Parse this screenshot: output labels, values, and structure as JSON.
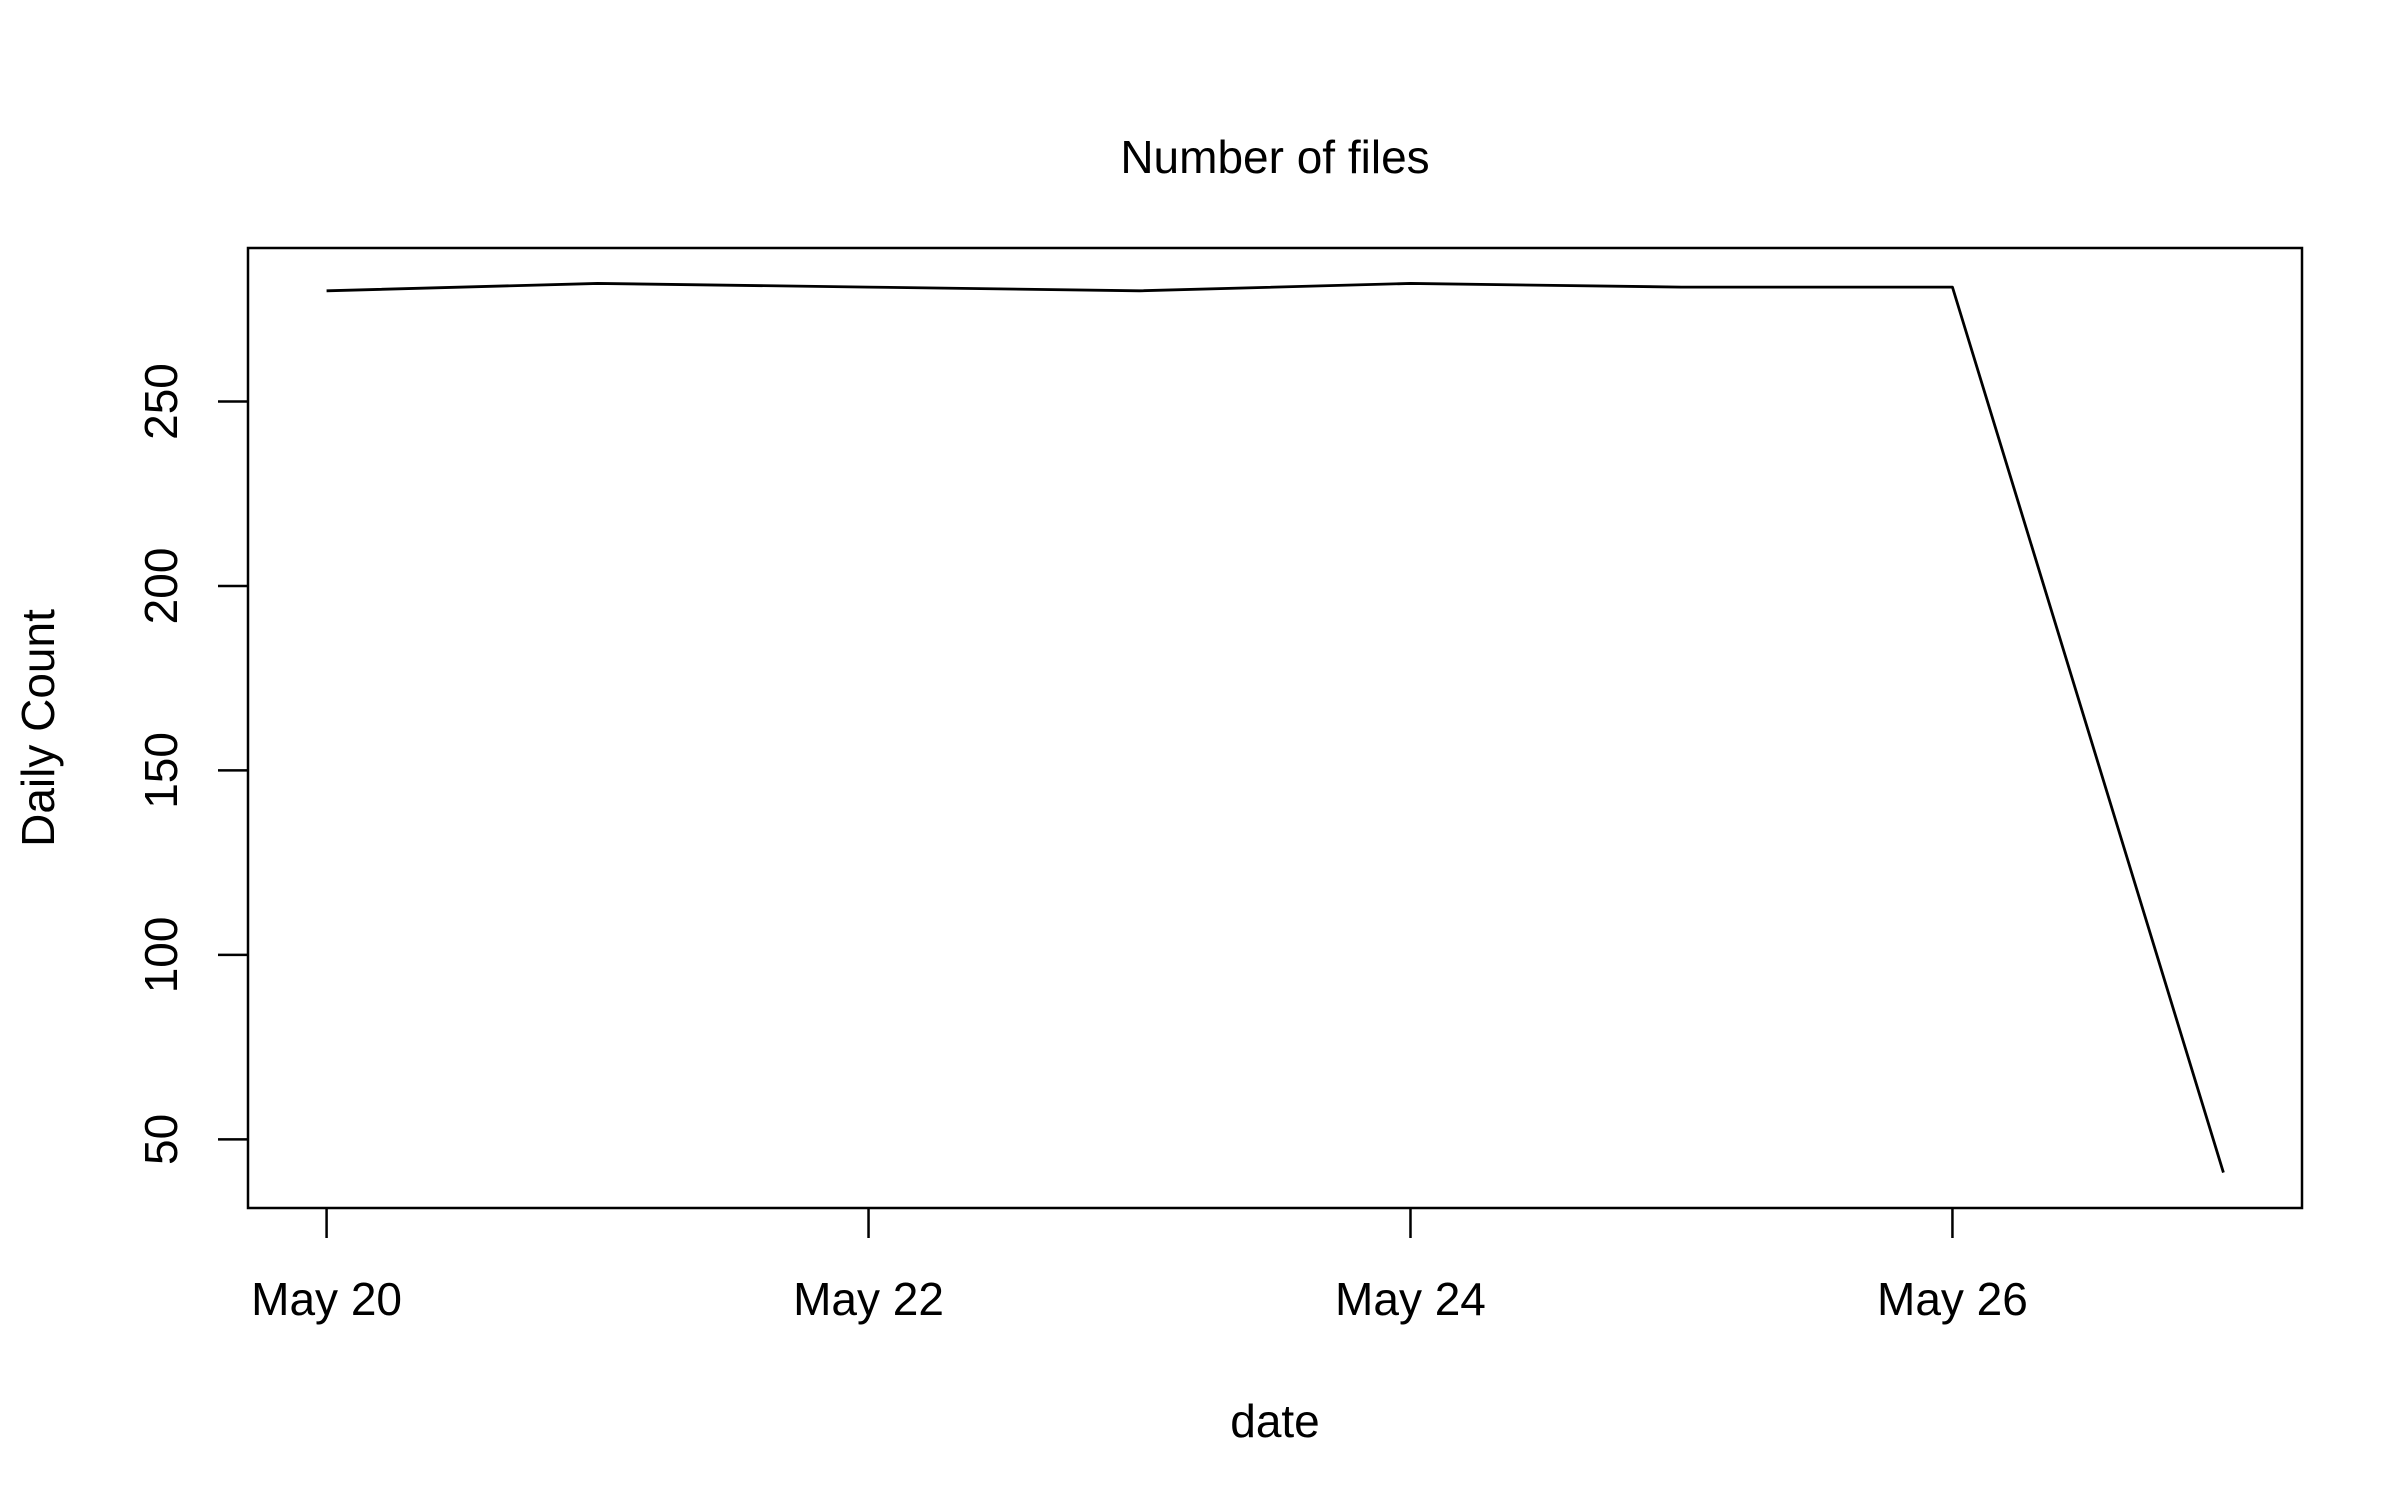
{
  "chart_data": {
    "type": "line",
    "title": "Number of files",
    "xlabel": "date",
    "ylabel": "Daily Count",
    "x": [
      "May 20",
      "May 21",
      "May 22",
      "May 23",
      "May 24",
      "May 25",
      "May 26",
      "May 27"
    ],
    "series": [
      {
        "values": [
          280,
          282,
          281,
          280,
          282,
          281,
          281,
          41
        ]
      }
    ],
    "x_ticks": [
      "May 20",
      "May 22",
      "May 24",
      "May 26"
    ],
    "y_ticks": [
      50,
      100,
      150,
      200,
      250
    ],
    "xlim": [
      "May 19.71",
      "May 27.29"
    ],
    "ylim": [
      31.4,
      291.6
    ],
    "grid": false,
    "legend": "none",
    "line_color": "#000000"
  }
}
